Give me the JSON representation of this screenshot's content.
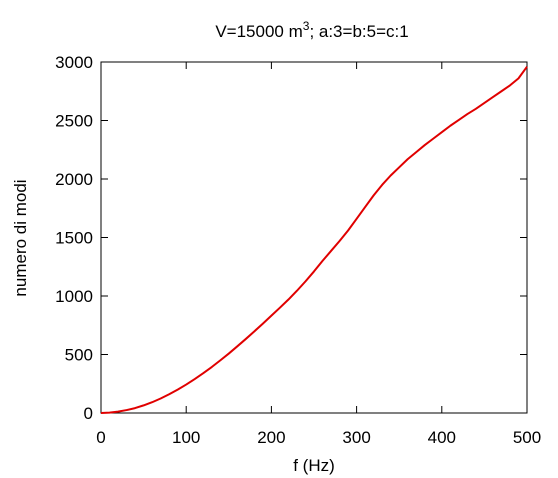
{
  "chart_data": {
    "type": "line",
    "title_main": "V=15000 m",
    "title_sup": "3",
    "title_rest": "; a:3=b:5=c:1",
    "xlabel": "f (Hz)",
    "ylabel": "numero di modi",
    "xlim": [
      0,
      500
    ],
    "ylim": [
      0,
      3000
    ],
    "x_ticks": [
      0,
      100,
      200,
      300,
      400,
      500
    ],
    "y_ticks": [
      0,
      500,
      1000,
      1500,
      2000,
      2500,
      3000
    ],
    "grid": false,
    "series": [
      {
        "color": "#e00000",
        "x": [
          0,
          10,
          20,
          30,
          40,
          50,
          60,
          70,
          80,
          90,
          100,
          110,
          120,
          130,
          140,
          150,
          160,
          170,
          180,
          190,
          200,
          210,
          220,
          230,
          240,
          250,
          260,
          270,
          280,
          290,
          300,
          310,
          320,
          330,
          340,
          350,
          360,
          370,
          380,
          390,
          400,
          410,
          420,
          430,
          440,
          450,
          460,
          470,
          480,
          490,
          500
        ],
        "y": [
          0,
          3,
          12,
          25,
          42,
          65,
          92,
          124,
          160,
          200,
          243,
          290,
          340,
          393,
          450,
          508,
          570,
          633,
          698,
          764,
          832,
          900,
          970,
          1045,
          1125,
          1210,
          1300,
          1385,
          1470,
          1560,
          1660,
          1760,
          1860,
          1950,
          2030,
          2100,
          2170,
          2230,
          2290,
          2345,
          2400,
          2455,
          2505,
          2555,
          2600,
          2650,
          2700,
          2750,
          2800,
          2860,
          2960
        ]
      }
    ]
  }
}
